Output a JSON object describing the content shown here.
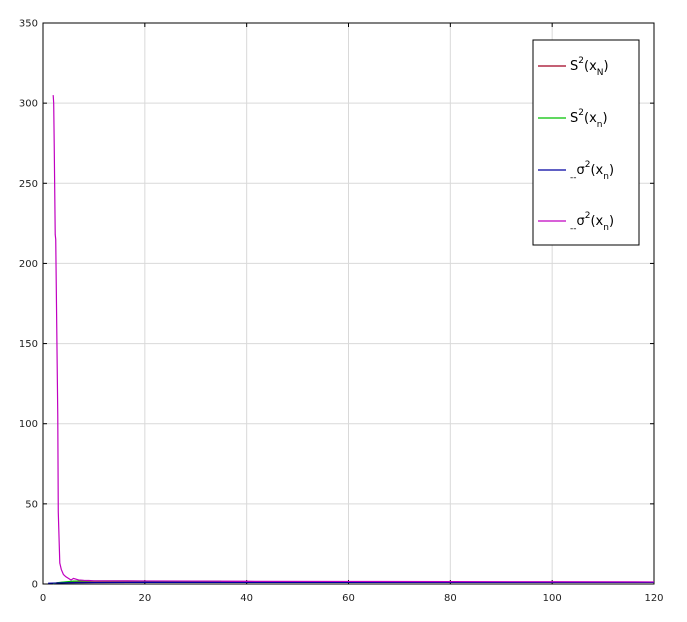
{
  "chart_data": {
    "type": "line",
    "title": "",
    "xlabel": "",
    "ylabel": "",
    "xlim": [
      0,
      120
    ],
    "ylim": [
      0,
      350
    ],
    "xticks": [
      0,
      20,
      40,
      60,
      80,
      100,
      120
    ],
    "yticks": [
      0,
      50,
      100,
      150,
      200,
      250,
      300,
      350
    ],
    "x_tick_labels": [
      "0",
      "20",
      "40",
      "60",
      "80",
      "100",
      "120"
    ],
    "y_tick_labels": [
      "0",
      "50",
      "100",
      "150",
      "200",
      "250",
      "300",
      "350"
    ],
    "grid": true,
    "legend_position": "top-right",
    "series": [
      {
        "name": "S2(xN)",
        "legend": {
          "base": "S",
          "sup": "2",
          "arg": "x",
          "sub": "N",
          "prefix": ""
        },
        "color": "#a00020",
        "x": [
          2,
          3,
          4,
          5,
          6,
          8,
          10,
          15,
          20,
          35,
          50,
          80,
          120
        ],
        "y": [
          0.3,
          0.8,
          1.0,
          1.1,
          1.1,
          1.1,
          1.1,
          1.1,
          1.1,
          1.1,
          1.1,
          1.1,
          1.1
        ]
      },
      {
        "name": "S2(xn)",
        "legend": {
          "base": "S",
          "sup": "2",
          "arg": "x",
          "sub": "n",
          "prefix": ""
        },
        "color": "#00c000",
        "x": [
          2,
          3,
          4,
          5,
          6,
          8,
          10,
          13,
          20,
          35
        ],
        "y": [
          0.2,
          0.9,
          1.2,
          1.5,
          1.8,
          1.9,
          1.9,
          1.9,
          1.8,
          1.7
        ]
      },
      {
        "name": "σ2(xn)",
        "legend": {
          "base": "σ",
          "sup": "2",
          "arg": "x",
          "sub": "n",
          "prefix": "--"
        },
        "color": "#0000a0",
        "x": [
          1,
          5,
          10,
          20,
          35,
          60,
          90,
          120
        ],
        "y": [
          0.5,
          0.8,
          0.9,
          1.0,
          1.0,
          1.0,
          1.0,
          1.0
        ]
      },
      {
        "name": "σ2(xn)",
        "legend": {
          "base": "σ",
          "sup": "2",
          "arg": "x",
          "sub": "n",
          "prefix": "--"
        },
        "color": "#c000c0",
        "x": [
          2,
          2.1,
          2.2,
          2.4,
          2.5,
          2.7,
          2.9,
          3.0,
          3.3,
          3.6,
          4.0,
          4.5,
          5.0,
          5.5,
          6,
          6.5,
          7,
          8,
          9,
          10,
          12,
          13.5,
          20,
          40,
          60,
          80,
          100,
          120
        ],
        "y": [
          305,
          300,
          275,
          218,
          215,
          160,
          105,
          45,
          13,
          9,
          6,
          4.5,
          3.5,
          2.5,
          3.5,
          3.0,
          2.5,
          2.3,
          2.2,
          2.0,
          2.0,
          2.0,
          1.9,
          1.7,
          1.6,
          1.5,
          1.4,
          1.3
        ]
      }
    ]
  }
}
